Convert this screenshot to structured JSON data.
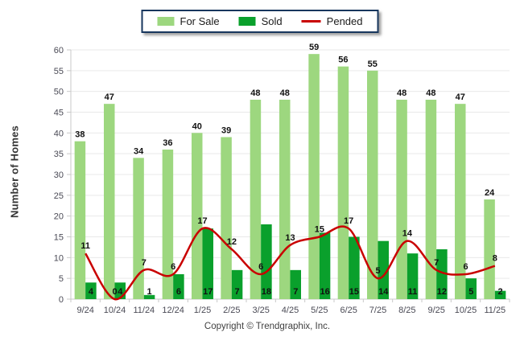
{
  "chart_data": {
    "type": "bar",
    "title": "",
    "categories": [
      "9/24",
      "10/24",
      "11/24",
      "12/24",
      "1/25",
      "2/25",
      "3/25",
      "4/25",
      "5/25",
      "6/25",
      "7/25",
      "8/25",
      "9/25",
      "10/25",
      "11/25"
    ],
    "series": [
      {
        "name": "For Sale",
        "type": "bar",
        "color": "#9DD77F",
        "label_position": "above",
        "values": [
          38,
          47,
          34,
          36,
          40,
          39,
          48,
          48,
          59,
          56,
          55,
          48,
          48,
          47,
          24
        ]
      },
      {
        "name": "Sold",
        "type": "bar",
        "color": "#0AA02C",
        "label_position": "base",
        "values": [
          4,
          4,
          1,
          6,
          17,
          7,
          18,
          7,
          16,
          15,
          14,
          11,
          12,
          5,
          2
        ]
      },
      {
        "name": "Pended",
        "type": "line",
        "color": "#C90000",
        "label_position": "above-line",
        "values": [
          11,
          0,
          7,
          6,
          17,
          12,
          6,
          13,
          15,
          17,
          5,
          14,
          7,
          6,
          8
        ]
      }
    ],
    "xlabel": "",
    "ylabel": "Number of Homes",
    "ylim": [
      0,
      60
    ],
    "ytick_step": 5,
    "grid": true,
    "legend_position": "top-center"
  },
  "footer": {
    "copyright": "Copyright © Trendgraphix, Inc."
  },
  "colors": {
    "legend_border": "#17365D",
    "gridline": "#E9E9E9",
    "axis_line": "#C9C9C9",
    "tick_text": "#4A4A55",
    "value_label": "#111111",
    "background": "#FFFFFF"
  }
}
